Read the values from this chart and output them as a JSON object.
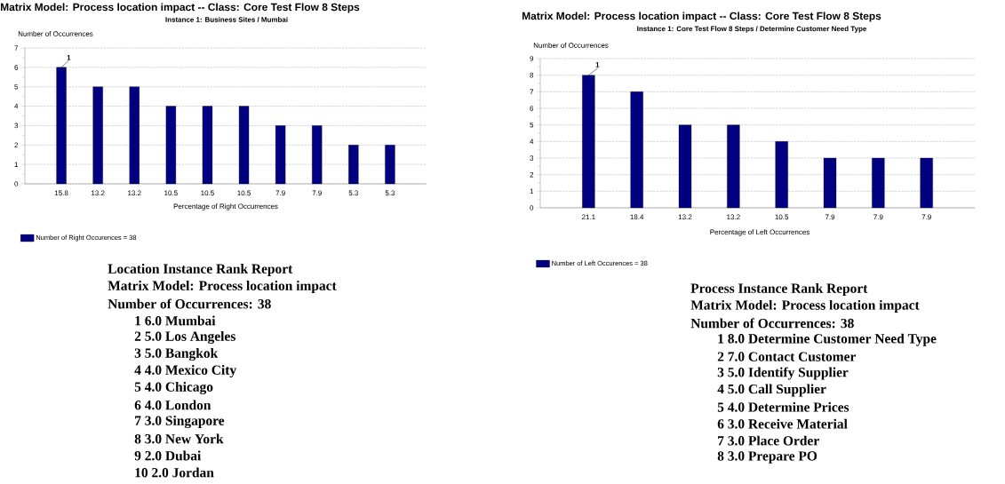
{
  "chart_data": [
    {
      "type": "bar",
      "title": "Matrix Model: Process location impact -- Class: Core Test Flow 8 Steps",
      "subtitle": "Instance 1: Business Sites / Mumbai",
      "xlabel": "Percentage of Right Occurrences",
      "ylabel": "Number of Occurrences",
      "categories": [
        "15.8",
        "13.2",
        "13.2",
        "10.5",
        "10.5",
        "10.5",
        "7.9",
        "7.9",
        "5.3",
        "5.3"
      ],
      "series": [
        {
          "name": "Number of Right Occurences = 38",
          "color": "#000080",
          "values": [
            6,
            5,
            5,
            4,
            4,
            4,
            3,
            3,
            2,
            2
          ]
        }
      ],
      "ylim": [
        0,
        7
      ],
      "yticks": [
        0,
        1,
        2,
        3,
        4,
        5,
        6,
        7
      ],
      "grid": "y",
      "legend": "bottom left",
      "annotations": [
        {
          "text": "1",
          "x": "15.8",
          "y": 6
        }
      ]
    },
    {
      "type": "bar",
      "title": "Matrix Model: Process location impact -- Class: Core Test Flow 8 Steps",
      "subtitle": "Instance 1: Core Test Flow 8 Steps / Determine Customer Need Type",
      "xlabel": "Percentage of Left Occurrences",
      "ylabel": "Number of Occurrences",
      "categories": [
        "21.1",
        "18.4",
        "13.2",
        "13.2",
        "10.5",
        "7.9",
        "7.9",
        "7.9"
      ],
      "series": [
        {
          "name": "Number of Left Occurences = 38",
          "color": "#000080",
          "values": [
            8,
            7,
            5,
            5,
            4,
            3,
            3,
            3
          ]
        }
      ],
      "ylim": [
        0,
        9
      ],
      "yticks": [
        0,
        1,
        2,
        3,
        4,
        5,
        6,
        7,
        8,
        9
      ],
      "grid": "y",
      "legend": "bottom left",
      "annotations": [
        {
          "text": "1",
          "x": "21.1",
          "y": 8
        }
      ]
    },
    {
      "type": "other",
      "title": "Location Instance Rank Report",
      "annotations": [
        "Matrix Model: Process location impact",
        "Number of Occurrences: 38",
        "1 6.0 Mumbai",
        "2 5.0 Los Angeles",
        "3 5.0 Bangkok",
        "4 4.0 Mexico City",
        "5 4.0 Chicago",
        "6 4.0 London",
        "7 3.0 Singapore",
        "8 3.0 New York",
        "9 2.0 Dubai",
        "10 2.0 Jordan"
      ]
    },
    {
      "type": "other",
      "title": "Process Instance Rank Report",
      "annotations": [
        "Matrix Model: Process location impact",
        "Number of Occurrences: 38",
        "1 8.0 Determine Customer Need Type",
        "2 7.0 Contact Customer",
        "3 5.0 Identify Supplier",
        "4 5.0 Call Supplier",
        "5 4.0 Determine Prices",
        "6 3.0 Receive Material",
        "7 3.0 Place Order",
        "8 3.0 Prepare PO"
      ]
    }
  ]
}
